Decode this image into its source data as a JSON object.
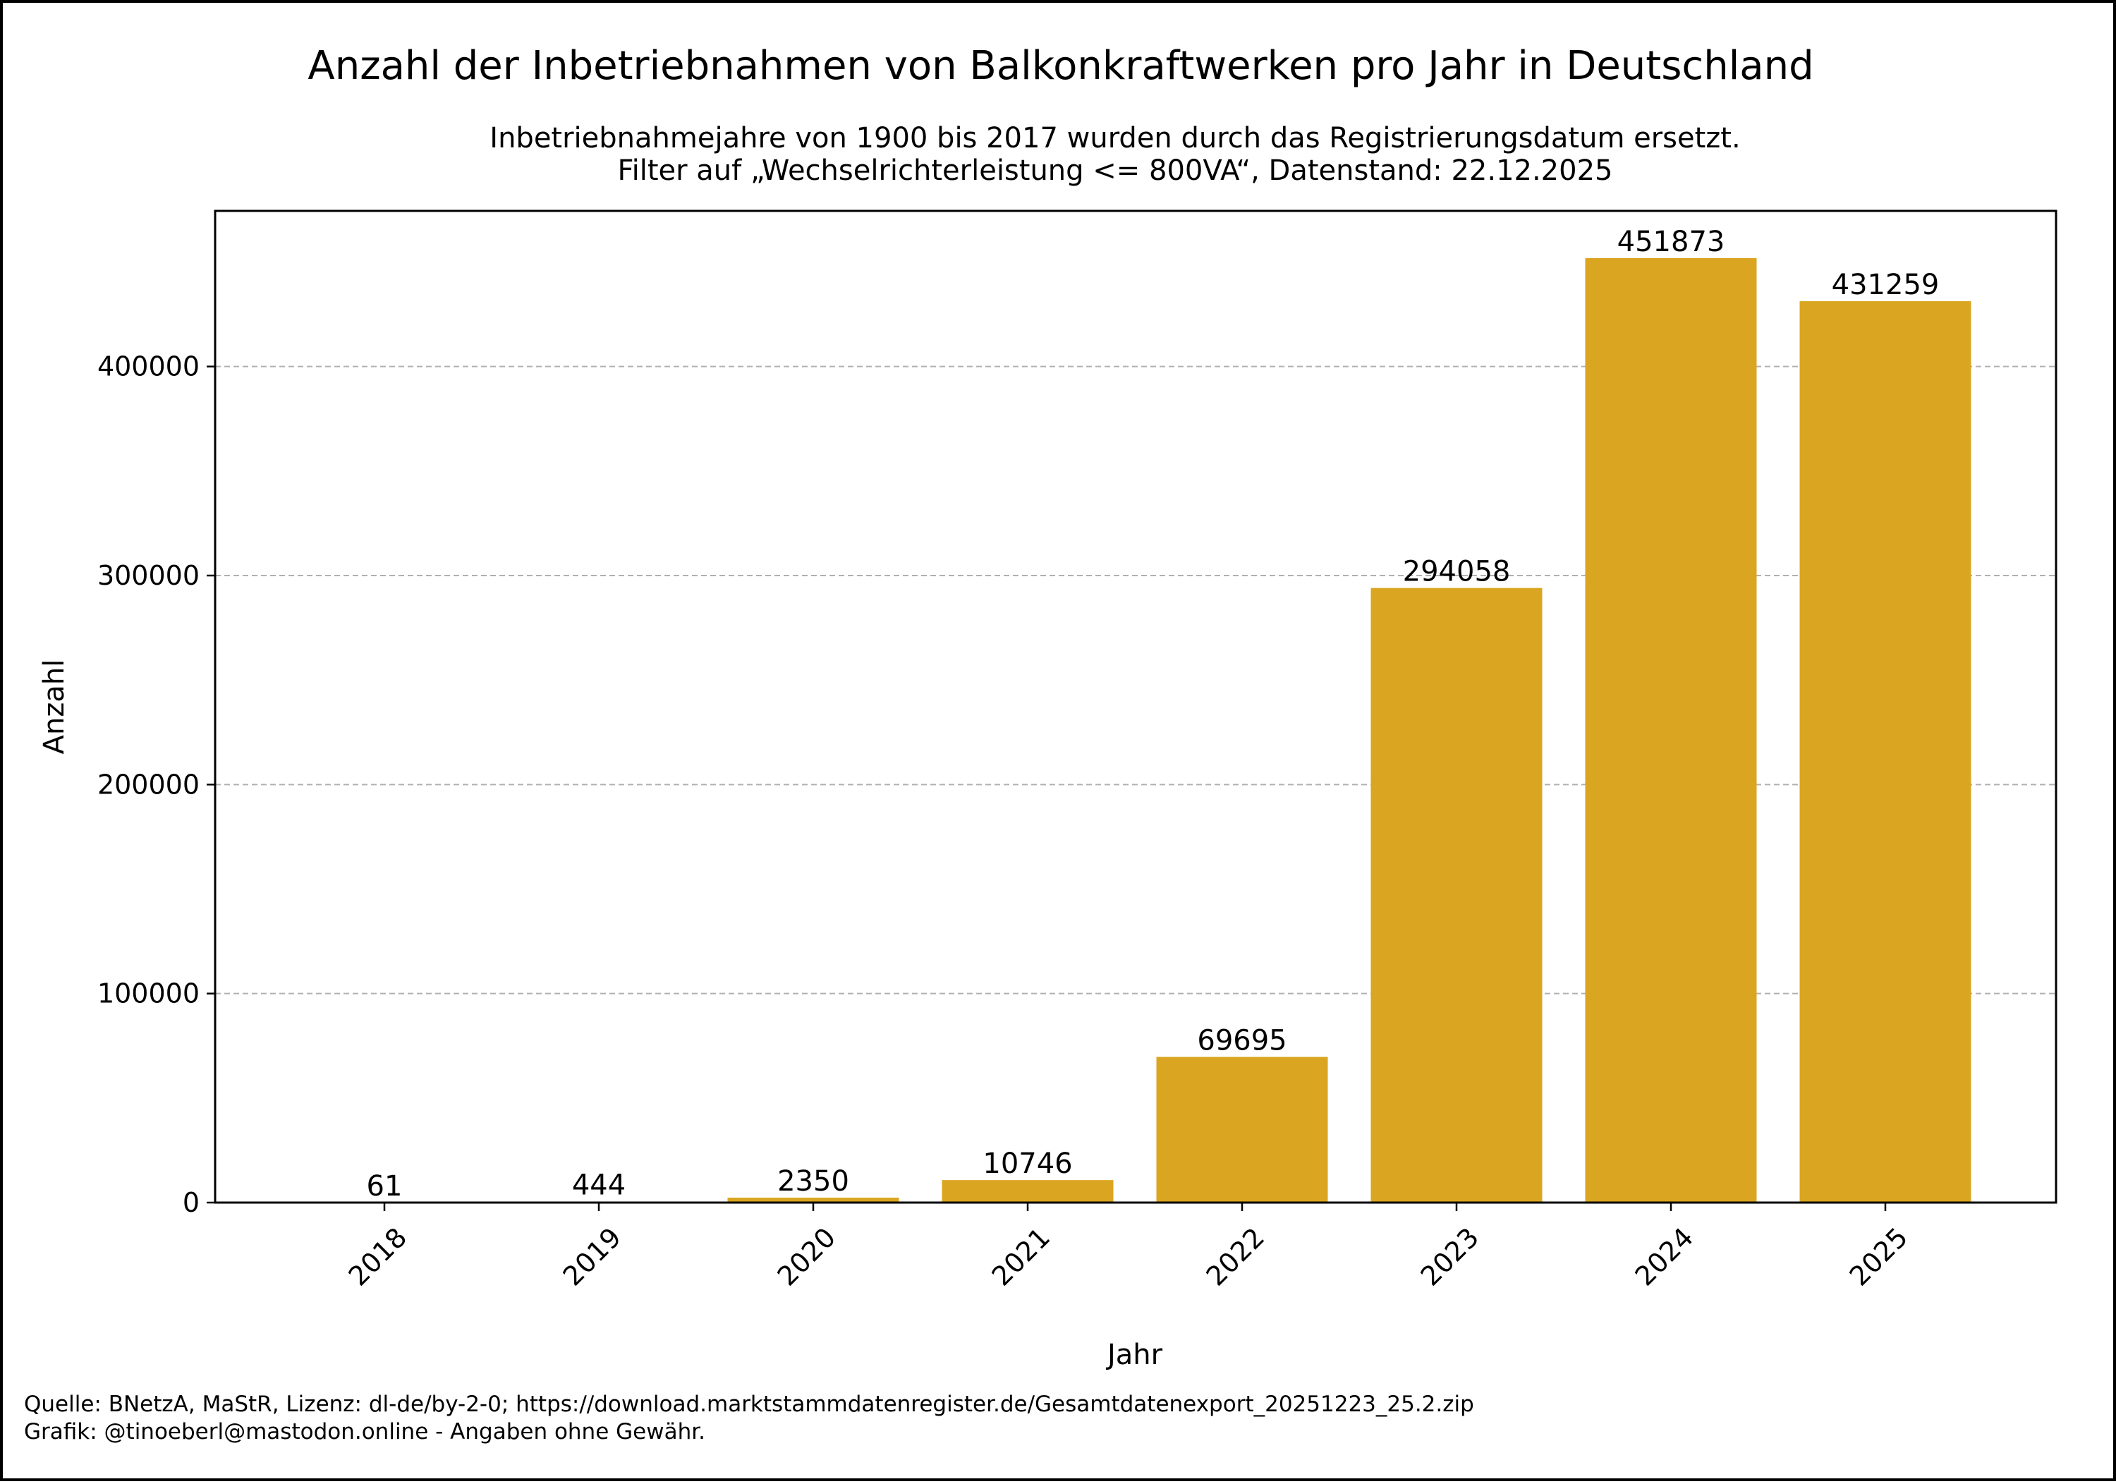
{
  "chart_data": {
    "type": "bar",
    "title": "Anzahl der Inbetriebnahmen von Balkonkraftwerken pro Jahr in Deutschland",
    "subtitle": [
      "Inbetriebnahmejahre von 1900 bis 2017 wurden durch das Registrierungsdatum ersetzt.",
      "Filter auf „Wechselrichterleistung <= 800VA“, Datenstand: 22.12.2025"
    ],
    "xlabel": "Jahr",
    "ylabel": "Anzahl",
    "categories": [
      "2018",
      "2019",
      "2020",
      "2021",
      "2022",
      "2023",
      "2024",
      "2025"
    ],
    "values": [
      61,
      444,
      2350,
      10746,
      69695,
      294058,
      451873,
      431259
    ],
    "value_labels": [
      "61",
      "444",
      "2350",
      "10746",
      "69695",
      "294058",
      "451873",
      "431259"
    ],
    "yticks": [
      0,
      100000,
      200000,
      300000,
      400000
    ],
    "ytick_labels": [
      "0",
      "100000",
      "200000",
      "300000",
      "400000"
    ],
    "ylim": [
      0,
      474467
    ],
    "grid": "y-dashed",
    "bar_color": "#DAA520"
  },
  "footer": {
    "source": "Quelle: BNetzA, MaStR, Lizenz: dl-de/by-2-0; https://download.marktstammdatenregister.de/Gesamtdatenexport_20251223_25.2.zip",
    "credit": "Grafik: @tinoeberl@mastodon.online - Angaben ohne Gewähr."
  }
}
